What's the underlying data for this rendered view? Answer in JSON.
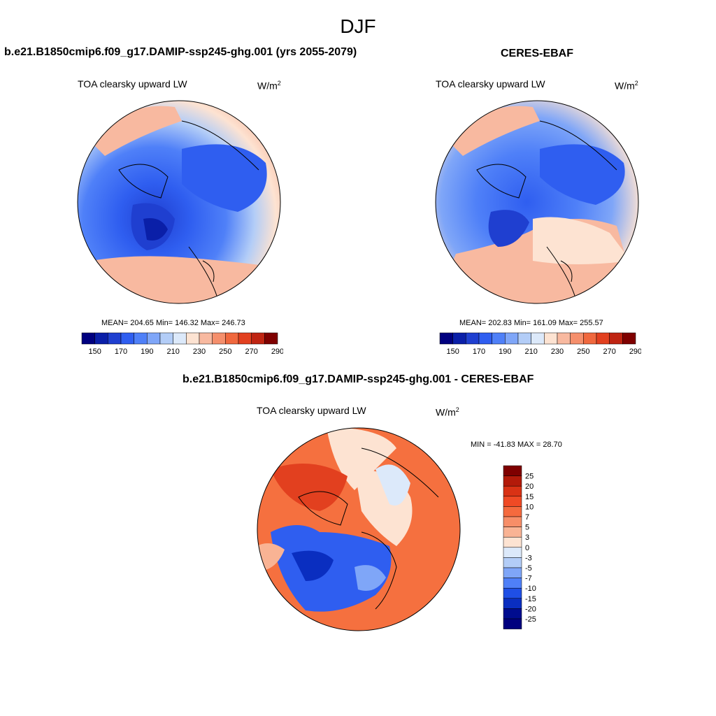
{
  "main_title": "DJF",
  "panels": [
    {
      "title": "b.e21.B1850cmip6.f09_g17.DAMIP-ssp245-ghg.001 (yrs 2055-2079)",
      "variable": "TOA clearsky upward LW",
      "units": "W/m",
      "units_sup": "2",
      "stats": "MEAN= 204.65  Min= 146.32  Max= 246.73"
    },
    {
      "title": "CERES-EBAF",
      "variable": "TOA clearsky upward LW",
      "units": "W/m",
      "units_sup": "2",
      "stats": "MEAN= 202.83  Min= 161.09  Max= 255.57"
    },
    {
      "title": "b.e21.B1850cmip6.f09_g17.DAMIP-ssp245-ghg.001 - CERES-EBAF",
      "variable": "TOA clearsky upward LW",
      "units": "W/m",
      "units_sup": "2",
      "stats": "MIN = -41.83 MAX =  28.70"
    }
  ],
  "chart_data": [
    {
      "type": "heatmap",
      "title": "b.e21.B1850cmip6.f09_g17.DAMIP-ssp245-ghg.001 (yrs 2055-2079)",
      "projection": "north polar stereographic",
      "variable": "TOA clearsky upward LW",
      "units": "W/m2",
      "mean": 204.65,
      "min": 146.32,
      "max": 246.73,
      "colorbar": {
        "orientation": "horizontal",
        "tick_labels": [
          "150",
          "170",
          "190",
          "210",
          "230",
          "250",
          "270",
          "290"
        ],
        "colors": [
          "#00007f",
          "#0a1fa8",
          "#1f3fd0",
          "#2f5ef0",
          "#4f80f8",
          "#7fa6f8",
          "#b3cdf7",
          "#dce9fa",
          "#fde3d2",
          "#f8b9a0",
          "#f58f6c",
          "#f0683e",
          "#e2401f",
          "#bf2412",
          "#7f0000"
        ]
      }
    },
    {
      "type": "heatmap",
      "title": "CERES-EBAF",
      "projection": "north polar stereographic",
      "variable": "TOA clearsky upward LW",
      "units": "W/m2",
      "mean": 202.83,
      "min": 161.09,
      "max": 255.57,
      "colorbar": {
        "orientation": "horizontal",
        "tick_labels": [
          "150",
          "170",
          "190",
          "210",
          "230",
          "250",
          "270",
          "290"
        ],
        "colors": [
          "#00007f",
          "#0a1fa8",
          "#1f3fd0",
          "#2f5ef0",
          "#4f80f8",
          "#7fa6f8",
          "#b3cdf7",
          "#dce9fa",
          "#fde3d2",
          "#f8b9a0",
          "#f58f6c",
          "#f0683e",
          "#e2401f",
          "#bf2412",
          "#7f0000"
        ]
      }
    },
    {
      "type": "heatmap",
      "title": "b.e21.B1850cmip6.f09_g17.DAMIP-ssp245-ghg.001 - CERES-EBAF",
      "projection": "north polar stereographic",
      "variable": "TOA clearsky upward LW",
      "units": "W/m2",
      "min": -41.83,
      "max": 28.7,
      "colorbar": {
        "orientation": "vertical",
        "tick_labels": [
          "25",
          "20",
          "15",
          "10",
          "7",
          "5",
          "3",
          "0",
          "-3",
          "-5",
          "-7",
          "-10",
          "-15",
          "-20",
          "-25"
        ],
        "colors": [
          "#7f0000",
          "#b31a0a",
          "#d93215",
          "#f04a25",
          "#f56a3e",
          "#f78e68",
          "#f9b394",
          "#fde3d2",
          "#dce9fa",
          "#b3cdf7",
          "#7fa6f8",
          "#4f80f8",
          "#1f4fe6",
          "#0a2ec0",
          "#000c8f",
          "#00007f"
        ]
      }
    }
  ]
}
